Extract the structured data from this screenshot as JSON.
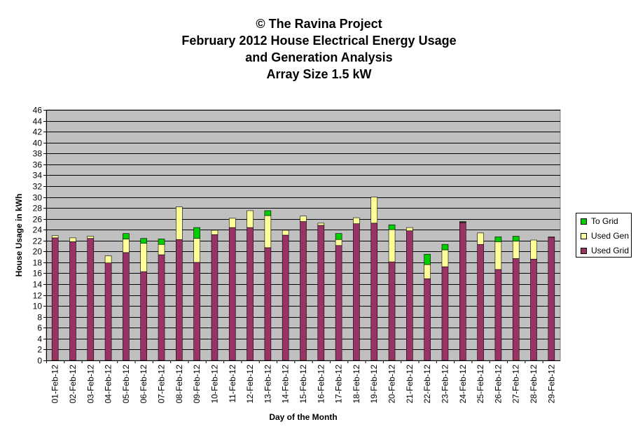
{
  "chart_data": {
    "type": "bar",
    "stacked": true,
    "title_lines": [
      "© The Ravina Project",
      "February 2012 House Electrical Energy Usage",
      "and Generation Analysis",
      "Array Size 1.5 kW"
    ],
    "xlabel": "Day of the Month",
    "ylabel": "House Usage in kWh",
    "ylim": [
      0,
      46
    ],
    "yticks": [
      0,
      2,
      4,
      6,
      8,
      10,
      12,
      14,
      16,
      18,
      20,
      22,
      24,
      26,
      28,
      30,
      32,
      34,
      36,
      38,
      40,
      42,
      44,
      46
    ],
    "grid": true,
    "legend_position": "right",
    "categories": [
      "01-Feb-12",
      "02-Feb-12",
      "03-Feb-12",
      "04-Feb-12",
      "05-Feb-12",
      "06-Feb-12",
      "07-Feb-12",
      "08-Feb-12",
      "09-Feb-12",
      "10-Feb-12",
      "11-Feb-12",
      "12-Feb-12",
      "13-Feb-12",
      "14-Feb-12",
      "15-Feb-12",
      "16-Feb-12",
      "17-Feb-12",
      "18-Feb-12",
      "19-Feb-12",
      "20-Feb-12",
      "21-Feb-12",
      "22-Feb-12",
      "23-Feb-12",
      "24-Feb-12",
      "25-Feb-12",
      "26-Feb-12",
      "27-Feb-12",
      "28-Feb-12",
      "29-Feb-12"
    ],
    "series": [
      {
        "name": "Used Grid",
        "color": "#993366",
        "values": [
          22.5,
          21.8,
          22.4,
          17.9,
          19.8,
          16.3,
          19.4,
          22.2,
          18.0,
          23.1,
          24.4,
          24.4,
          20.7,
          23.0,
          25.5,
          24.8,
          21.1,
          25.1,
          25.2,
          18.1,
          23.8,
          15.0,
          17.2,
          25.3,
          21.3,
          16.7,
          18.7,
          18.6,
          22.6
        ]
      },
      {
        "name": "Used Gen",
        "color": "#FFFF99",
        "values": [
          0.4,
          0.7,
          0.4,
          1.3,
          2.5,
          5.2,
          1.9,
          6.0,
          4.4,
          0.8,
          1.7,
          3.1,
          5.9,
          0.9,
          1.0,
          0.4,
          1.1,
          1.1,
          4.8,
          5.9,
          0.6,
          2.6,
          3.1,
          0.1,
          2.1,
          5.1,
          3.2,
          3.5,
          0.1
        ]
      },
      {
        "name": "To Grid",
        "color": "#00CC00",
        "values": [
          0.0,
          0.0,
          0.0,
          0.0,
          1.0,
          0.9,
          1.0,
          0.0,
          2.0,
          0.0,
          0.0,
          0.0,
          0.9,
          0.0,
          0.0,
          0.0,
          1.1,
          0.0,
          0.0,
          0.9,
          0.0,
          1.9,
          1.0,
          0.1,
          0.0,
          0.9,
          0.9,
          0.0,
          0.0
        ]
      }
    ],
    "legend_order": [
      "To Grid",
      "Used Gen",
      "Used Grid"
    ],
    "plot_background": "#C0C0C0"
  }
}
